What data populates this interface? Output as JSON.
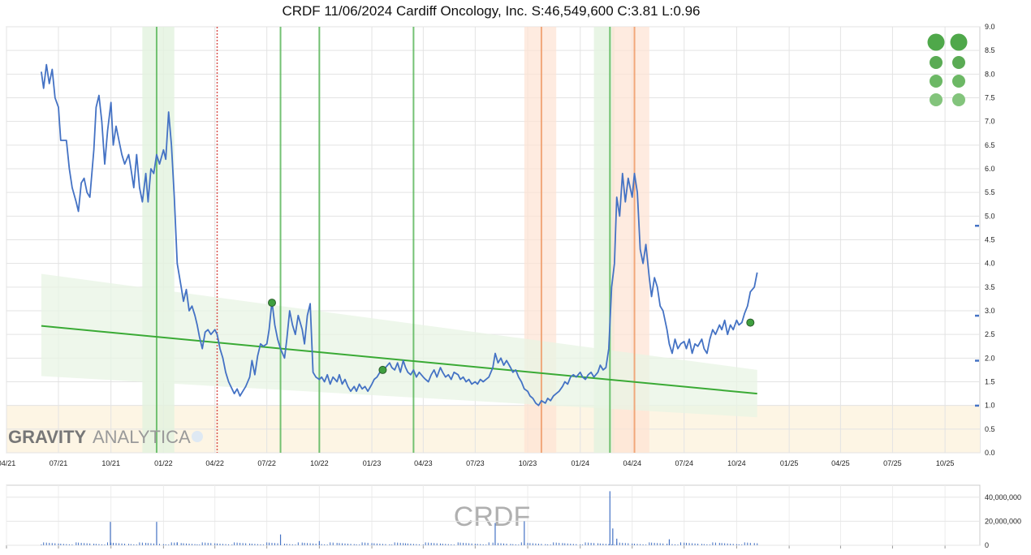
{
  "title": "CRDF 11/06/2024 Cardiff Oncology, Inc. S:46,549,600 C:3.81 L:0.96",
  "watermark": {
    "brand_bold": "GRAVITY",
    "brand_light": "ANALYTICA",
    "ticker": "CRDF"
  },
  "colors": {
    "price": "#4472c4",
    "trend": "#3aaa35",
    "band": "#e8f4e4",
    "green_shade": "#e2f2de",
    "orange_shade": "#fde3d3",
    "green_line": "#5cb85c",
    "orange_line": "#f0a070",
    "red_dotted": "#d9534f",
    "low_zone": "#fdf5e4",
    "marker": "#3f9f3f",
    "volume": "#4472c4"
  },
  "chart_data": {
    "type": "line",
    "title": "CRDF 11/06/2024 Cardiff Oncology, Inc. S:46,549,600 C:3.81 L:0.96",
    "x_tick_labels": [
      "04/21",
      "07/21",
      "10/21",
      "01/22",
      "04/22",
      "07/22",
      "10/22",
      "01/23",
      "04/23",
      "07/23",
      "10/23",
      "01/24",
      "04/24",
      "07/24",
      "10/24",
      "01/25",
      "04/25",
      "07/25",
      "10/25"
    ],
    "y_tick_labels": [
      "0.0",
      "0.5",
      "1.0",
      "1.5",
      "2.0",
      "2.5",
      "3.0",
      "3.5",
      "4.0",
      "4.5",
      "5.0",
      "5.5",
      "6.0",
      "6.5",
      "7.0",
      "7.5",
      "8.0",
      "8.5",
      "9.0"
    ],
    "ylim": [
      0,
      9
    ],
    "grid": true,
    "price_series": {
      "name": "",
      "points": [
        [
          "2021-06-01",
          8.05
        ],
        [
          "2021-06-05",
          7.7
        ],
        [
          "2021-06-10",
          8.2
        ],
        [
          "2021-06-15",
          7.8
        ],
        [
          "2021-06-20",
          8.1
        ],
        [
          "2021-06-25",
          7.5
        ],
        [
          "2021-07-01",
          7.3
        ],
        [
          "2021-07-05",
          6.6
        ],
        [
          "2021-07-10",
          6.6
        ],
        [
          "2021-07-15",
          6.6
        ],
        [
          "2021-07-20",
          6.0
        ],
        [
          "2021-07-25",
          5.6
        ],
        [
          "2021-08-01",
          5.3
        ],
        [
          "2021-08-05",
          5.1
        ],
        [
          "2021-08-10",
          5.7
        ],
        [
          "2021-08-15",
          5.8
        ],
        [
          "2021-08-20",
          5.5
        ],
        [
          "2021-08-25",
          5.4
        ],
        [
          "2021-09-01",
          6.4
        ],
        [
          "2021-09-05",
          7.3
        ],
        [
          "2021-09-10",
          7.55
        ],
        [
          "2021-09-15",
          7.0
        ],
        [
          "2021-09-20",
          6.1
        ],
        [
          "2021-09-25",
          6.8
        ],
        [
          "2021-10-01",
          7.4
        ],
        [
          "2021-10-05",
          6.5
        ],
        [
          "2021-10-10",
          6.9
        ],
        [
          "2021-10-15",
          6.6
        ],
        [
          "2021-10-20",
          6.3
        ],
        [
          "2021-10-25",
          6.1
        ],
        [
          "2021-11-01",
          6.3
        ],
        [
          "2021-11-05",
          6.0
        ],
        [
          "2021-11-10",
          5.6
        ],
        [
          "2021-11-15",
          6.3
        ],
        [
          "2021-11-20",
          5.6
        ],
        [
          "2021-11-25",
          5.3
        ],
        [
          "2021-12-01",
          5.9
        ],
        [
          "2021-12-05",
          5.3
        ],
        [
          "2021-12-10",
          6.0
        ],
        [
          "2021-12-15",
          5.9
        ],
        [
          "2021-12-20",
          6.3
        ],
        [
          "2021-12-25",
          6.1
        ],
        [
          "2022-01-01",
          6.4
        ],
        [
          "2022-01-05",
          6.2
        ],
        [
          "2022-01-10",
          7.2
        ],
        [
          "2022-01-15",
          6.5
        ],
        [
          "2022-01-20",
          5.4
        ],
        [
          "2022-01-25",
          4.0
        ],
        [
          "2022-02-01",
          3.5
        ],
        [
          "2022-02-05",
          3.2
        ],
        [
          "2022-02-10",
          3.45
        ],
        [
          "2022-02-15",
          3.0
        ],
        [
          "2022-02-20",
          3.1
        ],
        [
          "2022-02-25",
          2.9
        ],
        [
          "2022-03-01",
          2.7
        ],
        [
          "2022-03-05",
          2.45
        ],
        [
          "2022-03-10",
          2.2
        ],
        [
          "2022-03-15",
          2.55
        ],
        [
          "2022-03-20",
          2.6
        ],
        [
          "2022-03-25",
          2.5
        ],
        [
          "2022-04-01",
          2.6
        ],
        [
          "2022-04-05",
          2.5
        ],
        [
          "2022-04-10",
          2.2
        ],
        [
          "2022-04-15",
          2.0
        ],
        [
          "2022-04-20",
          1.7
        ],
        [
          "2022-04-25",
          1.5
        ],
        [
          "2022-05-01",
          1.35
        ],
        [
          "2022-05-05",
          1.25
        ],
        [
          "2022-05-10",
          1.35
        ],
        [
          "2022-05-15",
          1.2
        ],
        [
          "2022-05-20",
          1.3
        ],
        [
          "2022-05-25",
          1.4
        ],
        [
          "2022-06-01",
          1.6
        ],
        [
          "2022-06-05",
          1.95
        ],
        [
          "2022-06-10",
          1.65
        ],
        [
          "2022-06-15",
          2.05
        ],
        [
          "2022-06-20",
          2.3
        ],
        [
          "2022-06-25",
          2.25
        ],
        [
          "2022-07-01",
          2.3
        ],
        [
          "2022-07-05",
          2.6
        ],
        [
          "2022-07-10",
          3.2
        ],
        [
          "2022-07-15",
          2.7
        ],
        [
          "2022-07-20",
          2.4
        ],
        [
          "2022-07-25",
          2.2
        ],
        [
          "2022-08-01",
          2.0
        ],
        [
          "2022-08-05",
          2.4
        ],
        [
          "2022-08-10",
          3.0
        ],
        [
          "2022-08-15",
          2.7
        ],
        [
          "2022-08-20",
          2.5
        ],
        [
          "2022-08-25",
          2.9
        ],
        [
          "2022-09-01",
          2.6
        ],
        [
          "2022-09-05",
          2.3
        ],
        [
          "2022-09-10",
          2.9
        ],
        [
          "2022-09-15",
          3.15
        ],
        [
          "2022-09-20",
          1.7
        ],
        [
          "2022-09-25",
          1.6
        ],
        [
          "2022-10-01",
          1.55
        ],
        [
          "2022-10-05",
          1.6
        ],
        [
          "2022-10-10",
          1.5
        ],
        [
          "2022-10-15",
          1.65
        ],
        [
          "2022-10-20",
          1.45
        ],
        [
          "2022-10-25",
          1.6
        ],
        [
          "2022-11-01",
          1.5
        ],
        [
          "2022-11-05",
          1.65
        ],
        [
          "2022-11-10",
          1.45
        ],
        [
          "2022-11-15",
          1.55
        ],
        [
          "2022-11-20",
          1.4
        ],
        [
          "2022-11-25",
          1.3
        ],
        [
          "2022-12-01",
          1.4
        ],
        [
          "2022-12-05",
          1.3
        ],
        [
          "2022-12-10",
          1.45
        ],
        [
          "2022-12-15",
          1.35
        ],
        [
          "2022-12-20",
          1.4
        ],
        [
          "2022-12-25",
          1.3
        ],
        [
          "2023-01-01",
          1.45
        ],
        [
          "2023-01-05",
          1.55
        ],
        [
          "2023-01-10",
          1.6
        ],
        [
          "2023-01-15",
          1.7
        ],
        [
          "2023-01-20",
          1.75
        ],
        [
          "2023-01-25",
          1.8
        ],
        [
          "2023-02-01",
          1.9
        ],
        [
          "2023-02-05",
          1.8
        ],
        [
          "2023-02-10",
          1.75
        ],
        [
          "2023-02-15",
          1.9
        ],
        [
          "2023-02-20",
          1.7
        ],
        [
          "2023-02-25",
          1.95
        ],
        [
          "2023-03-01",
          1.8
        ],
        [
          "2023-03-05",
          1.7
        ],
        [
          "2023-03-10",
          1.65
        ],
        [
          "2023-03-15",
          1.75
        ],
        [
          "2023-03-20",
          1.6
        ],
        [
          "2023-03-25",
          1.7
        ],
        [
          "2023-04-01",
          1.6
        ],
        [
          "2023-04-05",
          1.55
        ],
        [
          "2023-04-10",
          1.5
        ],
        [
          "2023-04-15",
          1.65
        ],
        [
          "2023-04-20",
          1.75
        ],
        [
          "2023-04-25",
          1.6
        ],
        [
          "2023-05-01",
          1.8
        ],
        [
          "2023-05-05",
          1.7
        ],
        [
          "2023-05-10",
          1.6
        ],
        [
          "2023-05-15",
          1.65
        ],
        [
          "2023-05-20",
          1.55
        ],
        [
          "2023-05-25",
          1.7
        ],
        [
          "2023-06-01",
          1.65
        ],
        [
          "2023-06-05",
          1.55
        ],
        [
          "2023-06-10",
          1.6
        ],
        [
          "2023-06-15",
          1.5
        ],
        [
          "2023-06-20",
          1.55
        ],
        [
          "2023-06-25",
          1.45
        ],
        [
          "2023-07-01",
          1.5
        ],
        [
          "2023-07-05",
          1.45
        ],
        [
          "2023-07-10",
          1.55
        ],
        [
          "2023-07-15",
          1.5
        ],
        [
          "2023-07-20",
          1.55
        ],
        [
          "2023-07-25",
          1.6
        ],
        [
          "2023-08-01",
          1.8
        ],
        [
          "2023-08-05",
          2.1
        ],
        [
          "2023-08-10",
          1.9
        ],
        [
          "2023-08-15",
          2.0
        ],
        [
          "2023-08-20",
          1.85
        ],
        [
          "2023-08-25",
          1.95
        ],
        [
          "2023-09-01",
          1.8
        ],
        [
          "2023-09-05",
          1.7
        ],
        [
          "2023-09-10",
          1.75
        ],
        [
          "2023-09-15",
          1.6
        ],
        [
          "2023-09-20",
          1.5
        ],
        [
          "2023-09-25",
          1.35
        ],
        [
          "2023-10-01",
          1.3
        ],
        [
          "2023-10-05",
          1.2
        ],
        [
          "2023-10-10",
          1.15
        ],
        [
          "2023-10-15",
          1.05
        ],
        [
          "2023-10-20",
          1.0
        ],
        [
          "2023-10-25",
          1.1
        ],
        [
          "2023-11-01",
          1.05
        ],
        [
          "2023-11-05",
          1.15
        ],
        [
          "2023-11-10",
          1.1
        ],
        [
          "2023-11-15",
          1.2
        ],
        [
          "2023-11-20",
          1.25
        ],
        [
          "2023-11-25",
          1.3
        ],
        [
          "2023-12-01",
          1.4
        ],
        [
          "2023-12-05",
          1.5
        ],
        [
          "2023-12-10",
          1.45
        ],
        [
          "2023-12-15",
          1.6
        ],
        [
          "2023-12-20",
          1.65
        ],
        [
          "2023-12-25",
          1.6
        ],
        [
          "2024-01-01",
          1.7
        ],
        [
          "2024-01-05",
          1.6
        ],
        [
          "2024-01-10",
          1.55
        ],
        [
          "2024-01-15",
          1.65
        ],
        [
          "2024-01-20",
          1.7
        ],
        [
          "2024-01-25",
          1.6
        ],
        [
          "2024-02-01",
          1.7
        ],
        [
          "2024-02-05",
          1.85
        ],
        [
          "2024-02-10",
          1.75
        ],
        [
          "2024-02-15",
          1.8
        ],
        [
          "2024-02-20",
          2.2
        ],
        [
          "2024-02-25",
          3.5
        ],
        [
          "2024-03-01",
          4.0
        ],
        [
          "2024-03-05",
          5.4
        ],
        [
          "2024-03-10",
          5.0
        ],
        [
          "2024-03-15",
          5.9
        ],
        [
          "2024-03-20",
          5.3
        ],
        [
          "2024-03-25",
          5.8
        ],
        [
          "2024-04-01",
          5.4
        ],
        [
          "2024-04-05",
          5.9
        ],
        [
          "2024-04-10",
          5.5
        ],
        [
          "2024-04-15",
          4.3
        ],
        [
          "2024-04-20",
          4.0
        ],
        [
          "2024-04-25",
          4.4
        ],
        [
          "2024-05-01",
          3.7
        ],
        [
          "2024-05-05",
          3.3
        ],
        [
          "2024-05-10",
          3.7
        ],
        [
          "2024-05-15",
          3.5
        ],
        [
          "2024-05-20",
          3.1
        ],
        [
          "2024-05-25",
          3.0
        ],
        [
          "2024-06-01",
          2.6
        ],
        [
          "2024-06-05",
          2.3
        ],
        [
          "2024-06-10",
          2.1
        ],
        [
          "2024-06-15",
          2.4
        ],
        [
          "2024-06-20",
          2.2
        ],
        [
          "2024-06-25",
          2.3
        ],
        [
          "2024-07-01",
          2.35
        ],
        [
          "2024-07-05",
          2.2
        ],
        [
          "2024-07-10",
          2.4
        ],
        [
          "2024-07-15",
          2.1
        ],
        [
          "2024-07-20",
          2.3
        ],
        [
          "2024-07-25",
          2.25
        ],
        [
          "2024-08-01",
          2.4
        ],
        [
          "2024-08-05",
          2.2
        ],
        [
          "2024-08-10",
          2.1
        ],
        [
          "2024-08-15",
          2.4
        ],
        [
          "2024-08-20",
          2.6
        ],
        [
          "2024-08-25",
          2.5
        ],
        [
          "2024-09-01",
          2.7
        ],
        [
          "2024-09-05",
          2.6
        ],
        [
          "2024-09-10",
          2.8
        ],
        [
          "2024-09-15",
          2.5
        ],
        [
          "2024-09-20",
          2.7
        ],
        [
          "2024-09-25",
          2.6
        ],
        [
          "2024-10-01",
          2.8
        ],
        [
          "2024-10-05",
          2.7
        ],
        [
          "2024-10-10",
          2.75
        ],
        [
          "2024-10-15",
          2.95
        ],
        [
          "2024-10-20",
          3.1
        ],
        [
          "2024-10-25",
          3.4
        ],
        [
          "2024-11-01",
          3.5
        ],
        [
          "2024-11-06",
          3.81
        ]
      ]
    },
    "trend_line": {
      "start": [
        "2021-06-01",
        2.68
      ],
      "end": [
        "2024-11-06",
        1.25
      ]
    },
    "trend_band": {
      "upper": [
        [
          "2021-06-01",
          3.78
        ],
        [
          "2024-11-06",
          1.75
        ]
      ],
      "lower": [
        [
          "2021-06-01",
          1.62
        ],
        [
          "2024-11-06",
          0.75
        ]
      ]
    },
    "low_zone": [
      0,
      1.0
    ],
    "green_shaded_ranges": [
      [
        "2021-11-25",
        "2022-01-20"
      ],
      [
        "2024-01-25",
        "2024-03-01"
      ]
    ],
    "orange_shaded_ranges": [
      [
        "2023-09-25",
        "2023-11-20"
      ],
      [
        "2024-02-25",
        "2024-05-01"
      ]
    ],
    "green_vertical_lines": [
      "2021-12-20",
      "2022-07-25",
      "2022-10-01",
      "2023-03-15",
      "2024-02-22"
    ],
    "orange_vertical_lines": [
      "2023-10-25",
      "2024-04-05"
    ],
    "red_dotted_lines": [
      "2022-04-05"
    ],
    "markers": [
      [
        "2022-07-10",
        3.17
      ],
      [
        "2023-01-20",
        1.75
      ],
      [
        "2024-10-25",
        2.75
      ]
    ],
    "right_axis_marks": [
      4.8,
      2.9,
      1.95,
      1.0
    ],
    "volume": {
      "y_tick_labels": [
        "0",
        "20,000,000",
        "40,000,000"
      ],
      "ylim": [
        0,
        50000000
      ],
      "spikes": [
        [
          "2021-09-30",
          19500000
        ],
        [
          "2021-12-20",
          19500000
        ],
        [
          "2022-01-25",
          2500000
        ],
        [
          "2022-07-25",
          9000000
        ],
        [
          "2022-10-01",
          3500000
        ],
        [
          "2023-08-05",
          18500000
        ],
        [
          "2023-09-25",
          20000000
        ],
        [
          "2024-02-22",
          45000000
        ],
        [
          "2024-02-27",
          14000000
        ],
        [
          "2024-03-05",
          5500000
        ],
        [
          "2024-06-05",
          5000000
        ]
      ]
    }
  },
  "signal_dots": [
    {
      "row": 0,
      "color": "#4fa84a"
    },
    {
      "row": 1,
      "color": "#5aab54"
    },
    {
      "row": 2,
      "color": "#6cb865"
    },
    {
      "row": 3,
      "color": "#83c47c"
    }
  ]
}
